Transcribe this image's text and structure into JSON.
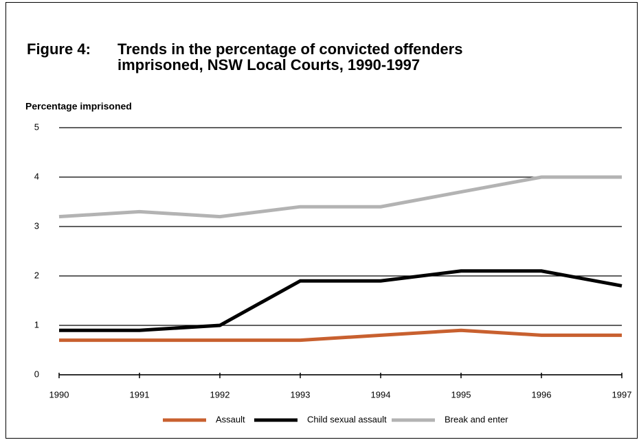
{
  "chart_data": {
    "type": "line",
    "figure_label": "Figure 4:",
    "title": "Trends in the percentage of convicted offenders imprisoned, NSW Local Courts, 1990-1997",
    "y_label": "Percentage imprisoned",
    "categories": [
      "1990",
      "1991",
      "1992",
      "1993",
      "1994",
      "1995",
      "1996",
      "1997"
    ],
    "series": [
      {
        "name": "Assault",
        "color": "#c8602f",
        "values": [
          0.7,
          0.7,
          0.7,
          0.7,
          0.8,
          0.9,
          0.8,
          0.8
        ]
      },
      {
        "name": "Child sexual assault",
        "color": "#000000",
        "values": [
          0.9,
          0.9,
          1.0,
          1.9,
          1.9,
          2.1,
          2.1,
          1.8
        ]
      },
      {
        "name": "Break and enter",
        "color": "#b3b3b3",
        "values": [
          3.2,
          3.3,
          3.2,
          3.4,
          3.4,
          3.7,
          4.0,
          4.0
        ]
      }
    ],
    "ylim": [
      0,
      5
    ],
    "yticks": [
      0,
      1,
      2,
      3,
      4,
      5
    ],
    "grid": true,
    "legend": "bottom"
  }
}
